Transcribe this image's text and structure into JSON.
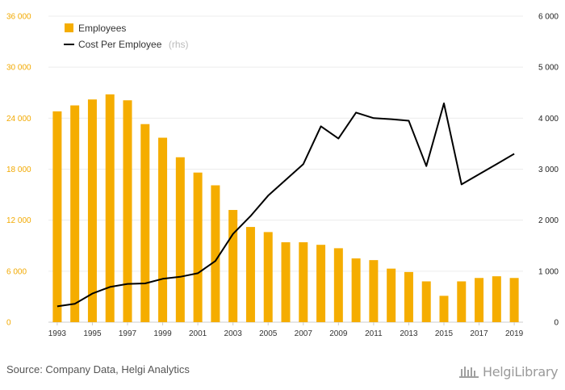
{
  "chart_data": {
    "type": "bar+line",
    "categories": [
      1993,
      1994,
      1995,
      1996,
      1997,
      1998,
      1999,
      2000,
      2001,
      2002,
      2003,
      2004,
      2005,
      2006,
      2007,
      2008,
      2009,
      2010,
      2011,
      2012,
      2013,
      2014,
      2015,
      2016,
      2017,
      2018,
      2019
    ],
    "x_tick_labels": [
      "1993",
      "1995",
      "1997",
      "1999",
      "2001",
      "2003",
      "2005",
      "2007",
      "2009",
      "2011",
      "2013",
      "2015",
      "2017",
      "2019"
    ],
    "series": [
      {
        "name": "Employees",
        "type": "bar",
        "axis": "left",
        "color": "#f5ad00",
        "values": [
          24800,
          25500,
          26200,
          26800,
          26100,
          23300,
          21700,
          19400,
          17600,
          16100,
          13200,
          11200,
          10600,
          9400,
          9400,
          9100,
          8700,
          7500,
          7300,
          6300,
          5900,
          4800,
          3100,
          4800,
          5200,
          5400,
          5200
        ]
      },
      {
        "name": "Cost Per Employee",
        "name_suffix": "(rhs)",
        "type": "line",
        "axis": "right",
        "color": "#000000",
        "values": [
          310,
          360,
          560,
          690,
          750,
          760,
          850,
          890,
          960,
          1200,
          1730,
          2080,
          2480,
          2790,
          3100,
          3840,
          3600,
          4110,
          4000,
          3980,
          3950,
          3060,
          4290,
          2700,
          2900,
          3100,
          3300
        ]
      }
    ],
    "y_left": {
      "min": 0,
      "max": 36000,
      "tick_labels": [
        "0",
        "6 000",
        "12 000",
        "18 000",
        "24 000",
        "30 000",
        "36 000"
      ],
      "tick_values": [
        0,
        6000,
        12000,
        18000,
        24000,
        30000,
        36000
      ]
    },
    "y_right": {
      "min": 0,
      "max": 6000,
      "tick_labels": [
        "0",
        "1 000",
        "2 000",
        "3 000",
        "4 000",
        "5 000",
        "6 000"
      ],
      "tick_values": [
        0,
        1000,
        2000,
        3000,
        4000,
        5000,
        6000
      ]
    },
    "grid": true,
    "legend_position": "top-left"
  },
  "footer": {
    "source": "Source: Company Data, Helgi Analytics",
    "brand": "HelgiLibrary"
  }
}
